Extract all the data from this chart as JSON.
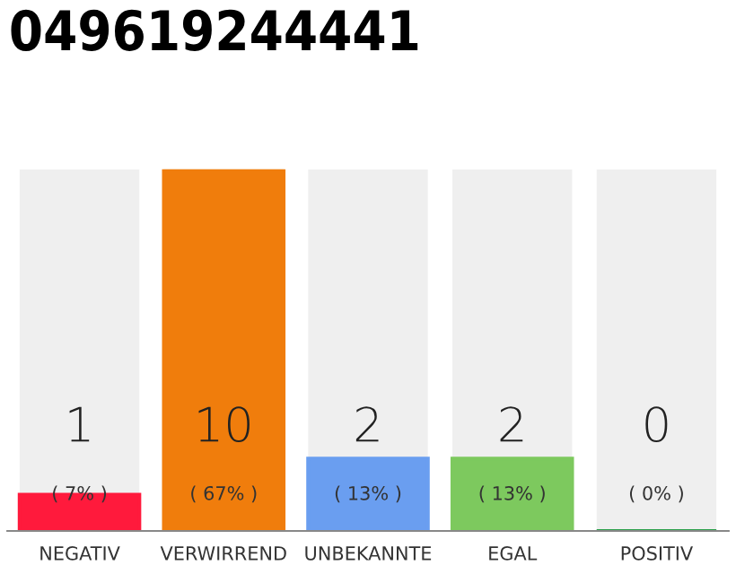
{
  "chart_data": {
    "type": "bar",
    "title": "049619244441",
    "categories": [
      "NEGATIV",
      "VERWIRREND",
      "UNBEKANNTE",
      "EGAL",
      "POSITIV"
    ],
    "values": [
      1,
      10,
      2,
      2,
      0
    ],
    "colors": [
      "#ff1a3c",
      "#f07d0c",
      "#6a9ef0",
      "#7dc95e",
      "#2aa04a"
    ],
    "value_labels": [
      "1",
      "10",
      "2",
      "2",
      "0"
    ],
    "annotations": [
      "( 7% )",
      "( 67% )",
      "( 13% )",
      "( 13% )",
      "( 0% )"
    ],
    "grid": false,
    "legend": false
  }
}
